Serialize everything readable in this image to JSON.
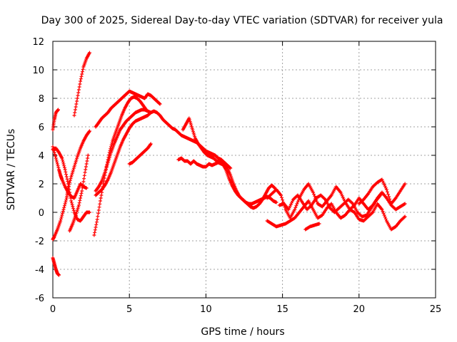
{
  "chart_data": {
    "type": "scatter",
    "title": "Day 300 of 2025, Sidereal Day-to-day VTEC variation (SDTVAR) for receiver yula",
    "xlabel": "GPS time / hours",
    "ylabel": "SDTVAR / TECUs",
    "xlim": [
      0,
      25
    ],
    "ylim": [
      -6,
      12
    ],
    "xticks": [
      0,
      5,
      10,
      15,
      20,
      25
    ],
    "yticks": [
      -6,
      -4,
      -2,
      0,
      2,
      4,
      6,
      8,
      10,
      12
    ],
    "grid": true,
    "marker": "+",
    "color": "#ff0000",
    "series": [
      {
        "name": "s1",
        "x": [
          0.0,
          0.1,
          0.2,
          0.35
        ],
        "y": [
          5.8,
          6.5,
          7.0,
          7.2
        ]
      },
      {
        "name": "s2",
        "x": [
          0.0,
          0.1,
          0.2,
          0.3,
          0.4
        ],
        "y": [
          -3.2,
          -3.6,
          -4.0,
          -4.3,
          -4.4
        ]
      },
      {
        "name": "s3",
        "x": [
          0.0,
          0.2,
          0.4,
          0.6,
          0.8,
          1.0,
          1.2,
          1.4,
          1.6,
          1.8,
          2.0,
          2.2,
          2.4
        ],
        "y": [
          4.4,
          4.5,
          4.2,
          3.8,
          3.0,
          2.0,
          0.8,
          0.0,
          -0.5,
          -0.6,
          -0.3,
          0.0,
          0.0
        ]
      },
      {
        "name": "s4",
        "x": [
          0.0,
          0.1,
          0.3,
          0.5,
          0.7,
          0.9,
          1.0,
          1.2,
          1.4,
          1.6,
          1.8,
          2.0,
          2.2,
          2.4
        ],
        "y": [
          -1.9,
          -1.7,
          -1.2,
          -0.6,
          0.2,
          1.0,
          1.7,
          2.5,
          3.2,
          3.9,
          4.5,
          5.0,
          5.4,
          5.7
        ]
      },
      {
        "name": "s5",
        "x": [
          0.0,
          0.2,
          0.4,
          0.5,
          0.6,
          0.8,
          1.0,
          1.2,
          1.4,
          1.6,
          1.8,
          2.0,
          2.2
        ],
        "y": [
          4.6,
          3.8,
          3.0,
          2.6,
          2.3,
          1.8,
          1.4,
          1.1,
          1.0,
          1.5,
          2.0,
          1.8,
          1.7
        ]
      },
      {
        "name": "s6",
        "x": [
          1.1,
          1.3,
          1.5,
          1.7,
          1.9,
          2.1,
          2.3
        ],
        "y": [
          -1.3,
          -0.8,
          -0.2,
          0.5,
          1.5,
          2.8,
          4.0
        ]
      },
      {
        "name": "s7",
        "x": [
          1.4,
          1.6,
          1.8,
          2.0,
          2.2,
          2.4
        ],
        "y": [
          6.8,
          8.0,
          9.2,
          10.2,
          10.8,
          11.2
        ]
      },
      {
        "name": "s8",
        "x": [
          2.8,
          3.0,
          3.2,
          3.4,
          3.6,
          3.8,
          4.0,
          4.2,
          4.4,
          4.6,
          4.8,
          5.0,
          5.2,
          5.4,
          5.6,
          5.8,
          6.0,
          6.2,
          6.4,
          6.6,
          6.8,
          7.0
        ],
        "y": [
          6.0,
          6.3,
          6.6,
          6.8,
          7.0,
          7.3,
          7.5,
          7.7,
          7.9,
          8.1,
          8.3,
          8.5,
          8.4,
          8.3,
          8.2,
          8.1,
          8.0,
          8.3,
          8.2,
          8.0,
          7.8,
          7.6
        ]
      },
      {
        "name": "s9",
        "x": [
          2.7,
          2.9,
          3.1,
          3.3,
          3.5,
          3.7,
          3.9,
          4.1,
          4.3,
          4.5,
          4.7,
          4.9,
          5.1,
          5.3,
          5.5,
          5.7,
          5.9,
          6.1
        ],
        "y": [
          -1.6,
          -0.5,
          0.8,
          2.0,
          3.2,
          4.2,
          5.0,
          5.6,
          6.2,
          6.8,
          7.3,
          7.7,
          8.0,
          8.1,
          8.0,
          7.8,
          7.5,
          7.2
        ]
      },
      {
        "name": "s10",
        "x": [
          2.8,
          3.0,
          3.2,
          3.4,
          3.6,
          3.8,
          4.0,
          4.2,
          4.4,
          4.6,
          4.8,
          5.0,
          5.2,
          5.4,
          5.6,
          5.8,
          6.0,
          6.2,
          6.4
        ],
        "y": [
          1.5,
          1.8,
          2.2,
          2.8,
          3.5,
          4.2,
          4.8,
          5.3,
          5.8,
          6.1,
          6.4,
          6.6,
          6.8,
          7.0,
          7.1,
          7.2,
          7.2,
          7.1,
          7.0
        ]
      },
      {
        "name": "s11",
        "x": [
          2.8,
          3.0,
          3.2,
          3.4,
          3.6,
          3.8,
          4.0,
          4.2,
          4.4,
          4.6,
          4.8,
          5.0,
          5.2,
          5.4,
          5.6,
          5.8,
          6.0,
          6.2,
          6.4,
          6.6,
          6.8,
          7.0,
          7.2,
          7.4,
          7.6,
          7.8,
          8.0,
          8.2,
          8.4,
          8.6,
          8.8,
          9.0,
          9.2,
          9.4,
          9.6,
          9.8,
          10.0,
          10.2,
          10.4,
          10.6,
          10.8,
          11.0,
          11.2,
          11.4,
          11.6
        ],
        "y": [
          1.2,
          1.4,
          1.6,
          1.9,
          2.3,
          2.8,
          3.4,
          4.0,
          4.6,
          5.1,
          5.5,
          5.9,
          6.2,
          6.4,
          6.5,
          6.6,
          6.7,
          6.8,
          7.0,
          7.1,
          7.0,
          6.8,
          6.5,
          6.3,
          6.1,
          5.9,
          5.8,
          5.6,
          5.4,
          5.3,
          5.2,
          5.1,
          5.0,
          4.9,
          4.7,
          4.5,
          4.3,
          4.2,
          4.1,
          4.0,
          3.8,
          3.7,
          3.5,
          3.3,
          3.1
        ]
      },
      {
        "name": "s12",
        "x": [
          5.0,
          5.2,
          5.4,
          5.6,
          5.8,
          6.0,
          6.2,
          6.4
        ],
        "y": [
          3.4,
          3.5,
          3.7,
          3.9,
          4.1,
          4.3,
          4.5,
          4.8
        ]
      },
      {
        "name": "s13",
        "x": [
          8.2,
          8.4,
          8.6,
          8.8,
          9.0,
          9.2,
          9.4,
          9.6,
          9.8,
          10.0,
          10.2,
          10.4,
          10.6,
          10.8,
          11.0,
          11.2,
          11.4,
          11.6,
          11.8,
          12.0,
          12.2,
          12.4,
          12.6,
          12.8,
          13.0,
          13.2,
          13.4,
          13.6,
          13.8,
          14.0,
          14.2,
          14.4,
          14.6
        ],
        "y": [
          3.7,
          3.8,
          3.6,
          3.6,
          3.4,
          3.6,
          3.4,
          3.3,
          3.2,
          3.2,
          3.4,
          3.3,
          3.4,
          3.5,
          3.4,
          3.3,
          3.1,
          2.6,
          2.0,
          1.5,
          1.1,
          0.9,
          0.7,
          0.6,
          0.6,
          0.7,
          0.8,
          0.9,
          1.0,
          1.1,
          1.0,
          0.8,
          0.7
        ]
      },
      {
        "name": "s14",
        "x": [
          8.5,
          8.7,
          8.9,
          9.1,
          9.3,
          9.5,
          9.7,
          9.9,
          10.1,
          10.3,
          10.5,
          10.7,
          10.9,
          11.1,
          11.3,
          11.5,
          11.7,
          11.9,
          12.1,
          12.3,
          12.5,
          12.7,
          12.9,
          13.1,
          13.3,
          13.5,
          13.7,
          13.9,
          14.1,
          14.3,
          14.5
        ],
        "y": [
          5.8,
          6.2,
          6.6,
          5.9,
          5.2,
          4.8,
          4.5,
          4.2,
          4.0,
          3.9,
          3.8,
          3.6,
          3.5,
          3.4,
          3.0,
          2.4,
          1.9,
          1.5,
          1.2,
          1.0,
          0.8,
          0.6,
          0.4,
          0.3,
          0.4,
          0.6,
          0.9,
          1.3,
          1.7,
          1.9,
          1.7
        ]
      },
      {
        "name": "s15",
        "x": [
          14.0,
          14.3,
          14.6,
          14.9,
          15.2,
          15.5,
          15.8,
          16.1,
          16.4,
          16.7,
          17.0,
          17.3,
          17.6,
          17.9,
          18.2,
          18.5,
          18.8,
          19.1,
          19.4,
          19.7,
          20.0,
          20.3,
          20.6,
          20.9,
          21.2,
          21.5,
          21.8,
          22.1,
          22.4,
          22.7,
          23.0
        ],
        "y": [
          1.0,
          1.3,
          1.6,
          1.2,
          0.2,
          -0.4,
          0.2,
          1.0,
          1.6,
          2.0,
          1.4,
          0.6,
          0.4,
          0.8,
          1.2,
          1.8,
          1.4,
          0.7,
          0.2,
          0.5,
          1.0,
          0.6,
          0.2,
          0.5,
          1.0,
          1.4,
          1.0,
          0.5,
          0.2,
          0.4,
          0.6
        ]
      },
      {
        "name": "s16",
        "x": [
          14.0,
          14.3,
          14.6,
          14.9,
          15.2,
          15.5,
          15.8,
          16.1,
          16.4,
          16.7,
          17.0,
          17.3,
          17.6,
          17.9,
          18.2,
          18.5,
          18.8,
          19.1,
          19.4,
          19.7,
          20.0,
          20.3,
          20.6,
          20.9,
          21.2,
          21.5,
          21.8,
          22.1,
          22.4,
          22.7,
          23.0
        ],
        "y": [
          -0.6,
          -0.8,
          -1.0,
          -0.9,
          -0.8,
          -0.6,
          -0.4,
          0.0,
          0.4,
          0.8,
          0.2,
          -0.4,
          -0.2,
          0.3,
          0.6,
          0.0,
          -0.4,
          -0.2,
          0.2,
          0.0,
          -0.5,
          -0.6,
          -0.3,
          0.0,
          0.6,
          0.2,
          -0.6,
          -1.2,
          -1.0,
          -0.6,
          -0.3
        ]
      },
      {
        "name": "s17",
        "x": [
          14.8,
          15.1,
          15.4,
          15.7,
          16.0,
          16.3,
          16.6,
          16.9,
          17.2,
          17.5,
          17.8,
          18.1,
          18.4,
          18.7,
          19.0,
          19.3,
          19.6,
          19.9,
          20.2,
          20.5,
          20.8,
          21.1,
          21.4
        ],
        "y": [
          0.5,
          0.6,
          0.2,
          0.9,
          1.2,
          0.7,
          0.2,
          0.5,
          1.0,
          1.2,
          0.9,
          0.3,
          0.0,
          0.3,
          0.6,
          0.9,
          0.6,
          0.0,
          -0.3,
          -0.2,
          0.3,
          0.8,
          1.2
        ]
      },
      {
        "name": "s18",
        "x": [
          16.5,
          16.8,
          17.1,
          17.4
        ],
        "y": [
          -1.2,
          -1.0,
          -0.9,
          -0.8
        ]
      },
      {
        "name": "s19",
        "x": [
          20.0,
          20.3,
          20.6,
          20.9,
          21.2,
          21.5,
          21.8,
          22.1,
          22.4,
          22.7,
          23.0
        ],
        "y": [
          0.6,
          0.9,
          1.3,
          1.8,
          2.1,
          2.3,
          1.6,
          0.6,
          1.0,
          1.5,
          2.0
        ]
      }
    ]
  }
}
